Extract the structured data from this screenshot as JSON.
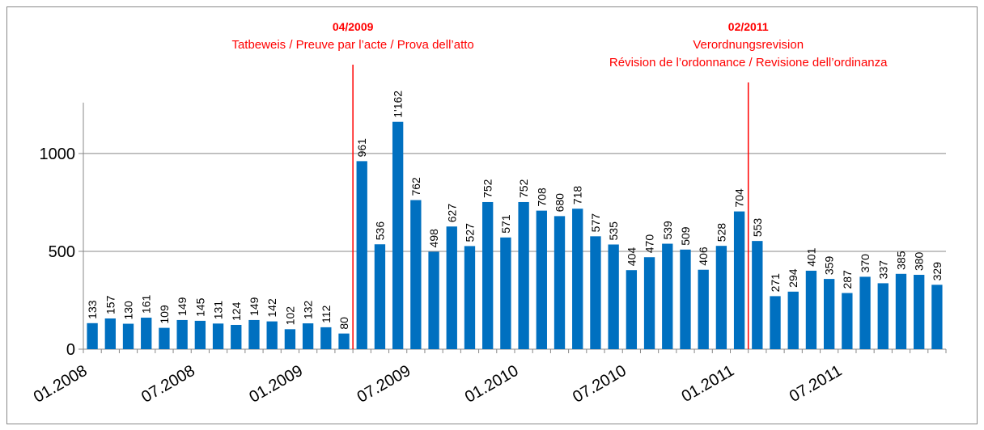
{
  "chart_data": {
    "type": "bar",
    "categories": [
      "01.2008",
      null,
      null,
      null,
      null,
      null,
      "07.2008",
      null,
      null,
      null,
      null,
      null,
      "01.2009",
      null,
      null,
      null,
      null,
      null,
      "07.2009",
      null,
      null,
      null,
      null,
      null,
      "01.2010",
      null,
      null,
      null,
      null,
      null,
      "07.2010",
      null,
      null,
      null,
      null,
      null,
      "01.2011",
      null,
      null,
      null,
      null,
      null,
      "07.2011",
      null,
      null,
      null,
      null,
      null
    ],
    "values": [
      133,
      157,
      130,
      161,
      109,
      149,
      145,
      131,
      124,
      149,
      142,
      102,
      132,
      112,
      80,
      961,
      536,
      1162,
      762,
      498,
      627,
      527,
      752,
      571,
      752,
      708,
      680,
      718,
      577,
      535,
      404,
      470,
      539,
      509,
      406,
      528,
      704,
      553,
      271,
      294,
      401,
      359,
      287,
      370,
      337,
      385,
      380,
      329
    ],
    "value_labels": [
      "133",
      "157",
      "130",
      "161",
      "109",
      "149",
      "145",
      "131",
      "124",
      "149",
      "142",
      "102",
      "132",
      "112",
      "80",
      "961",
      "536",
      "1'162",
      "762",
      "498",
      "627",
      "527",
      "752",
      "571",
      "752",
      "708",
      "680",
      "718",
      "577",
      "535",
      "404",
      "470",
      "539",
      "509",
      "406",
      "528",
      "704",
      "553",
      "271",
      "294",
      "401",
      "359",
      "287",
      "370",
      "337",
      "385",
      "380",
      "329"
    ],
    "color": "#0070c0",
    "ylim": [
      0,
      1260
    ],
    "yticks": [
      0,
      500,
      1000
    ],
    "grid": true,
    "annotations": [
      {
        "label": "04/2009",
        "text": [
          "Tatbeweis / Preuve par l’acte / Prova dell’atto"
        ],
        "color": "#ff0000"
      },
      {
        "label": "02/2011",
        "text": [
          "Verordnungsrevision",
          "Révision de l’ordonnance / Revisione dell’ordinanza"
        ],
        "color": "#ff0000"
      }
    ]
  }
}
